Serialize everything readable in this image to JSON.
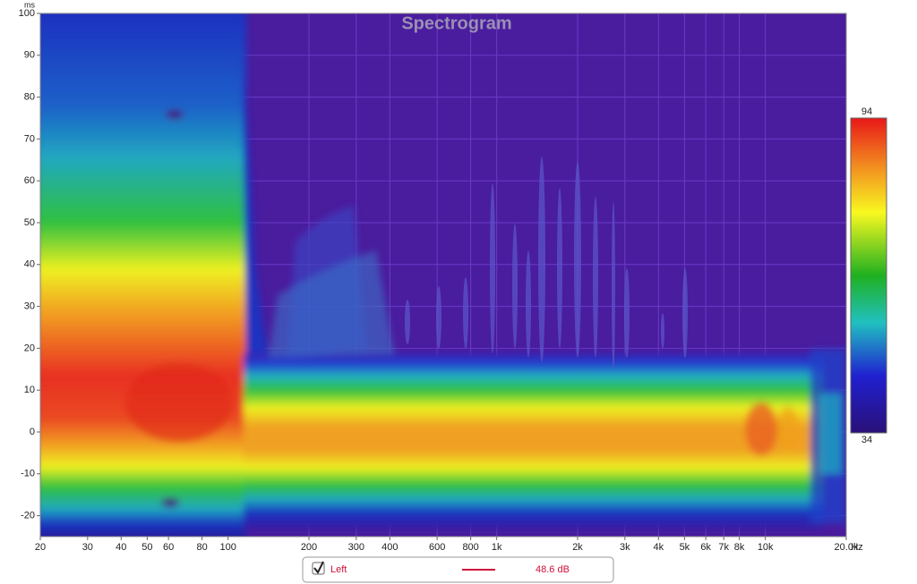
{
  "chart_data": {
    "type": "spectrogram",
    "title": "Spectrogram",
    "y_label": "ms",
    "x_label": "Hz",
    "log_x": true,
    "grid": true,
    "xlim": [
      20,
      20000
    ],
    "ylim": [
      -25,
      100
    ],
    "yticks": [
      -20,
      -10,
      0,
      10,
      20,
      30,
      40,
      50,
      60,
      70,
      80,
      90,
      100
    ],
    "xticks": [
      20,
      30,
      40,
      50,
      60,
      80,
      100,
      200,
      300,
      400,
      600,
      800,
      {
        "value": 1000,
        "label": "1k"
      },
      {
        "value": 2000,
        "label": "2k"
      },
      {
        "value": 3000,
        "label": "3k"
      },
      {
        "value": 4000,
        "label": "4k"
      },
      {
        "value": 5000,
        "label": "5k"
      },
      {
        "value": 6000,
        "label": "6k"
      },
      {
        "value": 7000,
        "label": "7k"
      },
      {
        "value": 8000,
        "label": "8k"
      },
      {
        "value": 10000,
        "label": "10k"
      },
      {
        "value": 20000,
        "label": "20.0k"
      }
    ],
    "colorbar": {
      "min": 34,
      "max": 94
    },
    "series": [
      {
        "name": "Left",
        "color": "#d0103a"
      }
    ],
    "readout": "48.6 dB"
  }
}
